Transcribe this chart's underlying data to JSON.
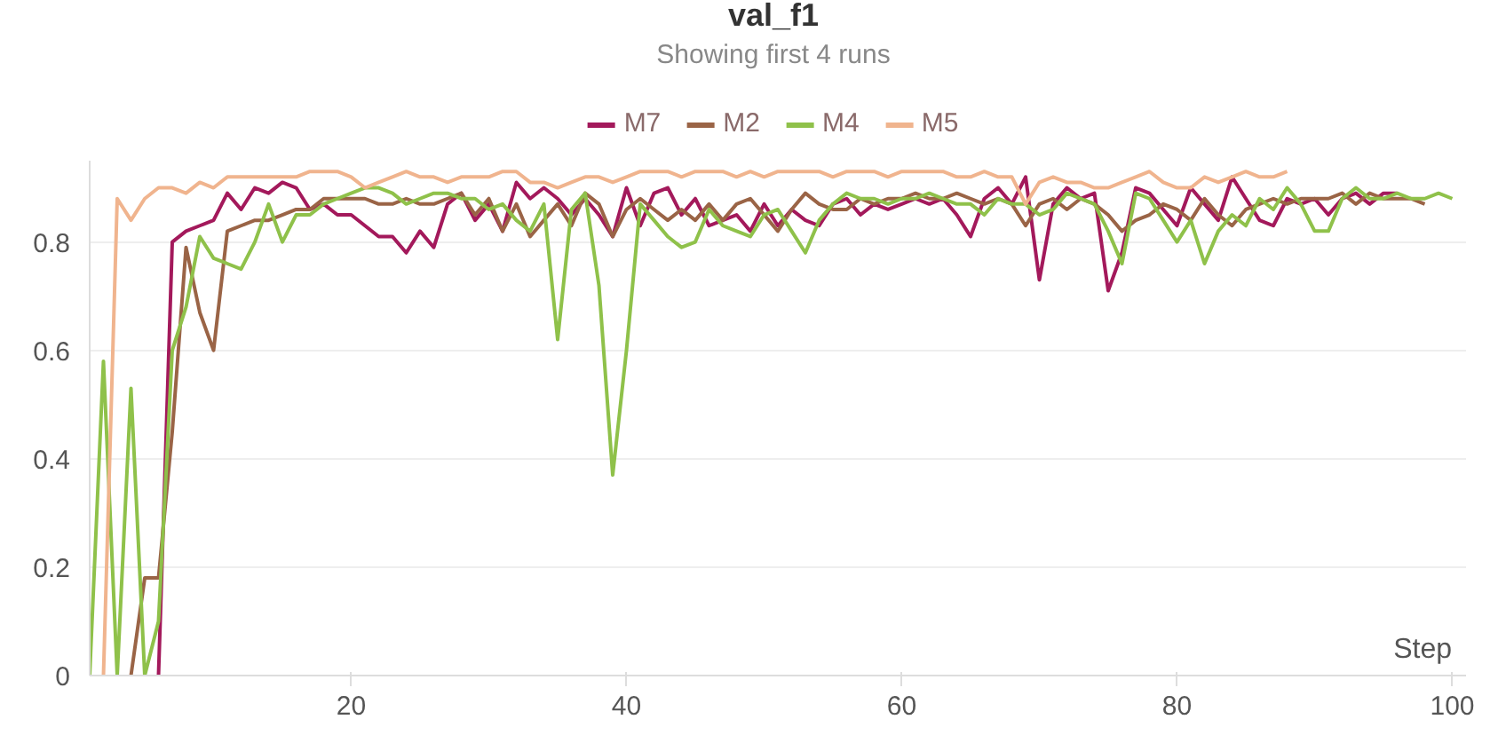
{
  "chart_data": {
    "type": "line",
    "title": "val_f1",
    "subtitle": "Showing first 4 runs",
    "xlabel": "Step",
    "xlim": [
      1,
      101
    ],
    "ylim": [
      0,
      0.95
    ],
    "xticks": [
      20,
      40,
      60,
      80,
      100
    ],
    "yticks": [
      0,
      0.2,
      0.4,
      0.6,
      0.8
    ],
    "grid": "y",
    "legend": "top",
    "marker": "none",
    "line_style": "solid",
    "series": [
      {
        "name": "M7",
        "color": "#a3195b",
        "x": [
          6,
          7,
          8,
          9,
          10,
          11,
          12,
          13,
          14,
          15,
          16,
          17,
          18,
          19,
          20,
          21,
          22,
          23,
          24,
          25,
          26,
          27,
          28,
          29,
          30,
          31,
          32,
          33,
          34,
          35,
          36,
          37,
          38,
          39,
          40,
          41,
          42,
          43,
          44,
          45,
          46,
          47,
          48,
          49,
          50,
          51,
          52,
          53,
          54,
          55,
          56,
          57,
          58,
          59,
          60,
          61,
          62,
          63,
          64,
          65,
          66,
          67,
          68,
          69,
          70,
          71,
          72,
          73,
          74,
          75,
          76,
          77,
          78,
          79,
          80,
          81,
          82,
          83,
          84,
          85,
          86,
          87,
          88,
          89,
          90,
          91,
          92,
          93,
          94,
          95,
          96
        ],
        "values": [
          0,
          0.8,
          0.82,
          0.83,
          0.84,
          0.89,
          0.86,
          0.9,
          0.89,
          0.91,
          0.9,
          0.86,
          0.87,
          0.85,
          0.85,
          0.83,
          0.81,
          0.81,
          0.78,
          0.82,
          0.79,
          0.87,
          0.89,
          0.84,
          0.87,
          0.82,
          0.91,
          0.88,
          0.9,
          0.88,
          0.85,
          0.88,
          0.85,
          0.81,
          0.9,
          0.83,
          0.89,
          0.9,
          0.85,
          0.88,
          0.83,
          0.84,
          0.85,
          0.82,
          0.87,
          0.83,
          0.86,
          0.84,
          0.83,
          0.87,
          0.88,
          0.85,
          0.87,
          0.86,
          0.87,
          0.88,
          0.87,
          0.88,
          0.85,
          0.81,
          0.88,
          0.9,
          0.87,
          0.92,
          0.73,
          0.87,
          0.9,
          0.88,
          0.89,
          0.71,
          0.78,
          0.9,
          0.89,
          0.86,
          0.83,
          0.9,
          0.87,
          0.84,
          0.92,
          0.88,
          0.84,
          0.83,
          0.88,
          0.87,
          0.88,
          0.85,
          0.88,
          0.89,
          0.87,
          0.89,
          0.89
        ]
      },
      {
        "name": "M2",
        "color": "#9a6446",
        "x": [
          4,
          5,
          6,
          7,
          8,
          9,
          10,
          11,
          12,
          13,
          14,
          15,
          16,
          17,
          18,
          19,
          20,
          21,
          22,
          23,
          24,
          25,
          26,
          27,
          28,
          29,
          30,
          31,
          32,
          33,
          34,
          35,
          36,
          37,
          38,
          39,
          40,
          41,
          42,
          43,
          44,
          45,
          46,
          47,
          48,
          49,
          50,
          51,
          52,
          53,
          54,
          55,
          56,
          57,
          58,
          59,
          60,
          61,
          62,
          63,
          64,
          65,
          66,
          67,
          68,
          69,
          70,
          71,
          72,
          73,
          74,
          75,
          76,
          77,
          78,
          79,
          80,
          81,
          82,
          83,
          84,
          85,
          86,
          87,
          88,
          89,
          90,
          91,
          92,
          93,
          94,
          95,
          96,
          97,
          98
        ],
        "values": [
          0,
          0.18,
          0.18,
          0.45,
          0.79,
          0.67,
          0.6,
          0.82,
          0.83,
          0.84,
          0.84,
          0.85,
          0.86,
          0.86,
          0.88,
          0.88,
          0.88,
          0.88,
          0.87,
          0.87,
          0.88,
          0.87,
          0.87,
          0.88,
          0.89,
          0.85,
          0.88,
          0.82,
          0.87,
          0.81,
          0.84,
          0.87,
          0.83,
          0.89,
          0.87,
          0.81,
          0.86,
          0.88,
          0.86,
          0.84,
          0.86,
          0.84,
          0.87,
          0.84,
          0.87,
          0.88,
          0.85,
          0.82,
          0.86,
          0.89,
          0.87,
          0.86,
          0.86,
          0.88,
          0.87,
          0.88,
          0.88,
          0.89,
          0.88,
          0.88,
          0.89,
          0.88,
          0.87,
          0.88,
          0.87,
          0.83,
          0.87,
          0.88,
          0.86,
          0.88,
          0.87,
          0.85,
          0.82,
          0.84,
          0.85,
          0.87,
          0.86,
          0.84,
          0.88,
          0.85,
          0.83,
          0.86,
          0.87,
          0.88,
          0.87,
          0.88,
          0.88,
          0.88,
          0.89,
          0.87,
          0.89,
          0.88,
          0.88,
          0.88,
          0.87
        ]
      },
      {
        "name": "M4",
        "color": "#8fc14a",
        "x": [
          1,
          2,
          3,
          4,
          5,
          6,
          7,
          8,
          9,
          10,
          11,
          12,
          13,
          14,
          15,
          16,
          17,
          18,
          19,
          20,
          21,
          22,
          23,
          24,
          25,
          26,
          27,
          28,
          29,
          30,
          31,
          32,
          33,
          34,
          35,
          36,
          37,
          38,
          39,
          40,
          41,
          42,
          43,
          44,
          45,
          46,
          47,
          48,
          49,
          50,
          51,
          52,
          53,
          54,
          55,
          56,
          57,
          58,
          59,
          60,
          61,
          62,
          63,
          64,
          65,
          66,
          67,
          68,
          69,
          70,
          71,
          72,
          73,
          74,
          75,
          76,
          77,
          78,
          79,
          80,
          81,
          82,
          83,
          84,
          85,
          86,
          87,
          88,
          89,
          90,
          91,
          92,
          93,
          94,
          95,
          96,
          97,
          98,
          99,
          100
        ],
        "values": [
          0,
          0.58,
          0,
          0.53,
          0,
          0.1,
          0.6,
          0.68,
          0.81,
          0.77,
          0.76,
          0.75,
          0.8,
          0.87,
          0.8,
          0.85,
          0.85,
          0.87,
          0.88,
          0.89,
          0.9,
          0.9,
          0.89,
          0.87,
          0.88,
          0.89,
          0.89,
          0.88,
          0.88,
          0.86,
          0.87,
          0.84,
          0.82,
          0.87,
          0.62,
          0.86,
          0.89,
          0.72,
          0.37,
          0.6,
          0.87,
          0.84,
          0.81,
          0.79,
          0.8,
          0.86,
          0.83,
          0.82,
          0.81,
          0.85,
          0.86,
          0.82,
          0.78,
          0.84,
          0.87,
          0.89,
          0.88,
          0.88,
          0.87,
          0.88,
          0.88,
          0.89,
          0.88,
          0.87,
          0.87,
          0.85,
          0.88,
          0.87,
          0.87,
          0.85,
          0.86,
          0.89,
          0.88,
          0.87,
          0.82,
          0.76,
          0.89,
          0.88,
          0.84,
          0.8,
          0.84,
          0.76,
          0.82,
          0.85,
          0.83,
          0.88,
          0.86,
          0.9,
          0.87,
          0.82,
          0.82,
          0.88,
          0.9,
          0.88,
          0.88,
          0.89,
          0.88,
          0.88,
          0.89,
          0.88
        ]
      },
      {
        "name": "M5",
        "color": "#f0b48e",
        "x": [
          2,
          3,
          4,
          5,
          6,
          7,
          8,
          9,
          10,
          11,
          12,
          13,
          14,
          15,
          16,
          17,
          18,
          19,
          20,
          21,
          22,
          23,
          24,
          25,
          26,
          27,
          28,
          29,
          30,
          31,
          32,
          33,
          34,
          35,
          36,
          37,
          38,
          39,
          40,
          41,
          42,
          43,
          44,
          45,
          46,
          47,
          48,
          49,
          50,
          51,
          52,
          53,
          54,
          55,
          56,
          57,
          58,
          59,
          60,
          61,
          62,
          63,
          64,
          65,
          66,
          67,
          68,
          69,
          70,
          71,
          72,
          73,
          74,
          75,
          76,
          77,
          78,
          79,
          80,
          81,
          82,
          83,
          84,
          85,
          86,
          87,
          88
        ],
        "values": [
          0,
          0.88,
          0.84,
          0.88,
          0.9,
          0.9,
          0.89,
          0.91,
          0.9,
          0.92,
          0.92,
          0.92,
          0.92,
          0.92,
          0.92,
          0.93,
          0.93,
          0.93,
          0.92,
          0.9,
          0.91,
          0.92,
          0.93,
          0.92,
          0.92,
          0.91,
          0.92,
          0.92,
          0.92,
          0.93,
          0.93,
          0.91,
          0.91,
          0.9,
          0.91,
          0.92,
          0.92,
          0.91,
          0.92,
          0.93,
          0.93,
          0.93,
          0.92,
          0.93,
          0.93,
          0.93,
          0.92,
          0.93,
          0.92,
          0.93,
          0.93,
          0.93,
          0.93,
          0.92,
          0.93,
          0.93,
          0.93,
          0.92,
          0.93,
          0.93,
          0.93,
          0.93,
          0.92,
          0.92,
          0.93,
          0.92,
          0.92,
          0.87,
          0.91,
          0.92,
          0.91,
          0.91,
          0.9,
          0.9,
          0.91,
          0.92,
          0.93,
          0.91,
          0.9,
          0.9,
          0.92,
          0.91,
          0.92,
          0.93,
          0.92,
          0.92,
          0.93
        ]
      }
    ]
  }
}
